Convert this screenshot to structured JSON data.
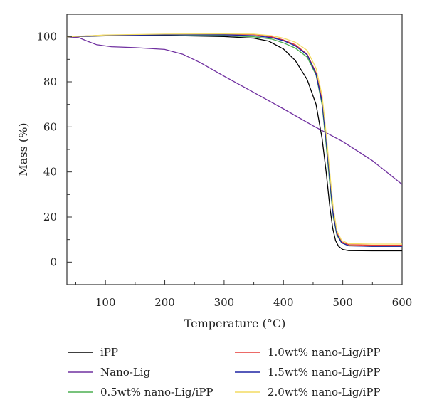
{
  "chart_data": {
    "type": "line",
    "title": "",
    "xlabel": "Temperature (°C)",
    "ylabel": "Mass (%)",
    "xlim": [
      35,
      600
    ],
    "ylim": [
      -10,
      110
    ],
    "x_ticks": [
      100,
      200,
      300,
      400,
      500,
      600
    ],
    "y_ticks": [
      0,
      20,
      40,
      60,
      80,
      100
    ],
    "grid": false,
    "legend_position": "bottom, two columns",
    "series": [
      {
        "name": "iPP",
        "color": "#000000",
        "points": [
          [
            35,
            100
          ],
          [
            100,
            100.4
          ],
          [
            200,
            100.6
          ],
          [
            300,
            100.1
          ],
          [
            350,
            99.4
          ],
          [
            375,
            98.1
          ],
          [
            400,
            94.6
          ],
          [
            420,
            89.5
          ],
          [
            440,
            81
          ],
          [
            455,
            70
          ],
          [
            465,
            55
          ],
          [
            472,
            40
          ],
          [
            478,
            25
          ],
          [
            483,
            15
          ],
          [
            488,
            9.5
          ],
          [
            493,
            7
          ],
          [
            500,
            5.6
          ],
          [
            510,
            5.1
          ],
          [
            550,
            5
          ],
          [
            600,
            5
          ]
        ]
      },
      {
        "name": "Nano-Lig",
        "color": "#7030a0",
        "points": [
          [
            35,
            100
          ],
          [
            55,
            99.6
          ],
          [
            70,
            98
          ],
          [
            85,
            96.5
          ],
          [
            110,
            95.6
          ],
          [
            150,
            95.2
          ],
          [
            200,
            94.4
          ],
          [
            230,
            92.3
          ],
          [
            260,
            88.5
          ],
          [
            300,
            82.5
          ],
          [
            350,
            75.3
          ],
          [
            400,
            68
          ],
          [
            450,
            60.5
          ],
          [
            500,
            53.5
          ],
          [
            550,
            45
          ],
          [
            600,
            34.5
          ]
        ]
      },
      {
        "name": "0.5wt% nano-Lig/iPP",
        "color": "#4caf50",
        "points": [
          [
            35,
            100
          ],
          [
            100,
            100.7
          ],
          [
            200,
            100.9
          ],
          [
            300,
            100.5
          ],
          [
            350,
            100
          ],
          [
            380,
            99
          ],
          [
            400,
            97.3
          ],
          [
            420,
            95
          ],
          [
            440,
            91
          ],
          [
            455,
            83
          ],
          [
            465,
            70
          ],
          [
            472,
            52
          ],
          [
            478,
            35
          ],
          [
            484,
            20
          ],
          [
            490,
            12
          ],
          [
            498,
            8.5
          ],
          [
            510,
            7.3
          ],
          [
            550,
            7
          ],
          [
            600,
            7
          ]
        ]
      },
      {
        "name": "1.0wt% nano-Lig/iPP",
        "color": "#e53935",
        "points": [
          [
            35,
            100
          ],
          [
            100,
            100.7
          ],
          [
            200,
            101
          ],
          [
            300,
            101.1
          ],
          [
            350,
            101
          ],
          [
            380,
            100
          ],
          [
            400,
            98.6
          ],
          [
            420,
            96.5
          ],
          [
            440,
            92.3
          ],
          [
            455,
            84
          ],
          [
            465,
            72
          ],
          [
            472,
            55
          ],
          [
            478,
            38
          ],
          [
            484,
            22
          ],
          [
            490,
            13
          ],
          [
            498,
            9
          ],
          [
            510,
            7.7
          ],
          [
            550,
            7.5
          ],
          [
            600,
            7.5
          ]
        ]
      },
      {
        "name": "1.5wt% nano-Lig/iPP",
        "color": "#1f24a3",
        "points": [
          [
            35,
            100
          ],
          [
            100,
            100.6
          ],
          [
            200,
            100.9
          ],
          [
            300,
            100.9
          ],
          [
            350,
            100.5
          ],
          [
            380,
            99.6
          ],
          [
            400,
            98.3
          ],
          [
            420,
            96
          ],
          [
            440,
            92
          ],
          [
            455,
            83.5
          ],
          [
            465,
            71
          ],
          [
            472,
            54
          ],
          [
            478,
            37
          ],
          [
            484,
            21
          ],
          [
            490,
            12.5
          ],
          [
            498,
            8.6
          ],
          [
            510,
            7.2
          ],
          [
            550,
            7
          ],
          [
            600,
            7
          ]
        ]
      },
      {
        "name": "2.0wt% nano-Lig/iPP",
        "color": "#f3dc62",
        "points": [
          [
            35,
            100
          ],
          [
            100,
            100.8
          ],
          [
            200,
            101.2
          ],
          [
            300,
            101.3
          ],
          [
            350,
            101.2
          ],
          [
            380,
            100.5
          ],
          [
            400,
            99.4
          ],
          [
            420,
            97.6
          ],
          [
            440,
            94
          ],
          [
            455,
            86
          ],
          [
            465,
            74
          ],
          [
            472,
            57
          ],
          [
            478,
            40
          ],
          [
            484,
            24
          ],
          [
            490,
            14
          ],
          [
            498,
            9.6
          ],
          [
            510,
            8.2
          ],
          [
            550,
            8
          ],
          [
            600,
            8
          ]
        ]
      }
    ]
  }
}
